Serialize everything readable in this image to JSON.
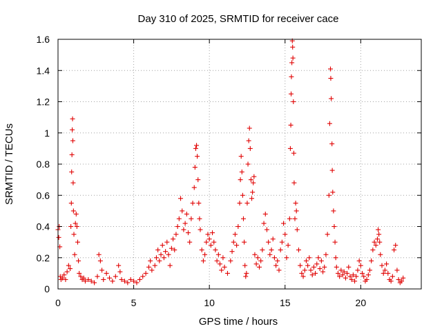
{
  "chart_data": {
    "type": "scatter",
    "title": "Day 310 of 2025, SRMTID for receiver cace",
    "xlabel": "GPS time / hours",
    "ylabel": "SRMTID / TECUs",
    "xlim": [
      0,
      24
    ],
    "ylim": [
      0,
      1.6
    ],
    "xticks": [
      0,
      5,
      10,
      15,
      20
    ],
    "xtick_labels": [
      "0",
      "5",
      "10",
      "15",
      "20"
    ],
    "yticks": [
      0,
      0.2,
      0.4,
      0.6,
      0.8,
      1,
      1.2,
      1.4,
      1.6
    ],
    "ytick_labels": [
      "0",
      "0.2",
      "0.4",
      "0.6",
      "0.8",
      "1",
      "1.2",
      "1.4",
      "1.6"
    ],
    "grid": true,
    "marker": "+",
    "series": [
      {
        "name": "SRMTID",
        "color": "#e00000",
        "points": [
          [
            0.0,
            0.38
          ],
          [
            0.05,
            0.33
          ],
          [
            0.08,
            0.4
          ],
          [
            0.12,
            0.27
          ],
          [
            0.15,
            0.08
          ],
          [
            0.2,
            0.06
          ],
          [
            0.3,
            0.07
          ],
          [
            0.4,
            0.09
          ],
          [
            0.5,
            0.06
          ],
          [
            0.6,
            0.11
          ],
          [
            0.7,
            0.15
          ],
          [
            0.8,
            0.13
          ],
          [
            0.85,
            0.4
          ],
          [
            0.88,
            0.55
          ],
          [
            0.9,
            0.75
          ],
          [
            0.92,
            0.86
          ],
          [
            0.94,
            1.02
          ],
          [
            0.96,
            1.09
          ],
          [
            0.98,
            0.95
          ],
          [
            1.0,
            0.68
          ],
          [
            1.02,
            0.5
          ],
          [
            1.05,
            0.35
          ],
          [
            1.1,
            0.22
          ],
          [
            1.15,
            0.42
          ],
          [
            1.2,
            0.48
          ],
          [
            1.25,
            0.4
          ],
          [
            1.3,
            0.3
          ],
          [
            1.35,
            0.18
          ],
          [
            1.4,
            0.1
          ],
          [
            1.5,
            0.08
          ],
          [
            1.6,
            0.06
          ],
          [
            1.7,
            0.07
          ],
          [
            1.8,
            0.05
          ],
          [
            2.0,
            0.06
          ],
          [
            2.2,
            0.05
          ],
          [
            2.4,
            0.04
          ],
          [
            2.6,
            0.08
          ],
          [
            2.7,
            0.22
          ],
          [
            2.8,
            0.18
          ],
          [
            2.9,
            0.12
          ],
          [
            3.0,
            0.06
          ],
          [
            3.2,
            0.1
          ],
          [
            3.4,
            0.07
          ],
          [
            3.6,
            0.05
          ],
          [
            3.8,
            0.08
          ],
          [
            4.0,
            0.15
          ],
          [
            4.1,
            0.11
          ],
          [
            4.2,
            0.06
          ],
          [
            4.4,
            0.05
          ],
          [
            4.6,
            0.04
          ],
          [
            4.8,
            0.06
          ],
          [
            5.0,
            0.05
          ],
          [
            5.2,
            0.04
          ],
          [
            5.4,
            0.06
          ],
          [
            5.6,
            0.08
          ],
          [
            5.8,
            0.1
          ],
          [
            6.0,
            0.14
          ],
          [
            6.1,
            0.18
          ],
          [
            6.2,
            0.12
          ],
          [
            6.4,
            0.15
          ],
          [
            6.5,
            0.2
          ],
          [
            6.6,
            0.25
          ],
          [
            6.7,
            0.18
          ],
          [
            6.8,
            0.22
          ],
          [
            6.9,
            0.28
          ],
          [
            7.0,
            0.2
          ],
          [
            7.1,
            0.24
          ],
          [
            7.2,
            0.3
          ],
          [
            7.3,
            0.22
          ],
          [
            7.4,
            0.15
          ],
          [
            7.5,
            0.26
          ],
          [
            7.6,
            0.32
          ],
          [
            7.7,
            0.25
          ],
          [
            7.8,
            0.35
          ],
          [
            7.9,
            0.4
          ],
          [
            8.0,
            0.45
          ],
          [
            8.1,
            0.58
          ],
          [
            8.2,
            0.5
          ],
          [
            8.3,
            0.38
          ],
          [
            8.4,
            0.42
          ],
          [
            8.5,
            0.48
          ],
          [
            8.6,
            0.36
          ],
          [
            8.7,
            0.3
          ],
          [
            8.8,
            0.45
          ],
          [
            8.9,
            0.55
          ],
          [
            9.0,
            0.65
          ],
          [
            9.05,
            0.78
          ],
          [
            9.1,
            0.9
          ],
          [
            9.15,
            0.92
          ],
          [
            9.2,
            0.85
          ],
          [
            9.25,
            0.7
          ],
          [
            9.3,
            0.55
          ],
          [
            9.35,
            0.45
          ],
          [
            9.4,
            0.38
          ],
          [
            9.5,
            0.25
          ],
          [
            9.6,
            0.18
          ],
          [
            9.7,
            0.22
          ],
          [
            9.8,
            0.3
          ],
          [
            9.9,
            0.35
          ],
          [
            10.0,
            0.32
          ],
          [
            10.1,
            0.28
          ],
          [
            10.2,
            0.36
          ],
          [
            10.3,
            0.3
          ],
          [
            10.4,
            0.25
          ],
          [
            10.5,
            0.18
          ],
          [
            10.6,
            0.22
          ],
          [
            10.7,
            0.16
          ],
          [
            10.8,
            0.12
          ],
          [
            10.9,
            0.2
          ],
          [
            11.0,
            0.14
          ],
          [
            11.2,
            0.1
          ],
          [
            11.4,
            0.18
          ],
          [
            11.5,
            0.24
          ],
          [
            11.6,
            0.3
          ],
          [
            11.7,
            0.35
          ],
          [
            11.8,
            0.28
          ],
          [
            11.9,
            0.4
          ],
          [
            12.0,
            0.55
          ],
          [
            12.05,
            0.7
          ],
          [
            12.1,
            0.85
          ],
          [
            12.15,
            0.75
          ],
          [
            12.2,
            0.6
          ],
          [
            12.25,
            0.45
          ],
          [
            12.3,
            0.3
          ],
          [
            12.35,
            0.15
          ],
          [
            12.4,
            0.08
          ],
          [
            12.45,
            0.1
          ],
          [
            12.5,
            0.55
          ],
          [
            12.55,
            0.8
          ],
          [
            12.6,
            0.95
          ],
          [
            12.65,
            1.03
          ],
          [
            12.7,
            0.9
          ],
          [
            12.75,
            0.7
          ],
          [
            12.8,
            0.58
          ],
          [
            12.85,
            0.62
          ],
          [
            12.9,
            0.68
          ],
          [
            12.95,
            0.72
          ],
          [
            13.0,
            0.22
          ],
          [
            13.1,
            0.16
          ],
          [
            13.2,
            0.2
          ],
          [
            13.3,
            0.14
          ],
          [
            13.4,
            0.18
          ],
          [
            13.5,
            0.25
          ],
          [
            13.6,
            0.42
          ],
          [
            13.7,
            0.48
          ],
          [
            13.8,
            0.38
          ],
          [
            13.9,
            0.3
          ],
          [
            14.0,
            0.22
          ],
          [
            14.1,
            0.25
          ],
          [
            14.2,
            0.32
          ],
          [
            14.3,
            0.2
          ],
          [
            14.4,
            0.15
          ],
          [
            14.5,
            0.18
          ],
          [
            14.6,
            0.12
          ],
          [
            14.7,
            0.25
          ],
          [
            14.8,
            0.3
          ],
          [
            14.9,
            0.42
          ],
          [
            15.0,
            0.35
          ],
          [
            15.1,
            0.2
          ],
          [
            15.2,
            0.28
          ],
          [
            15.3,
            0.45
          ],
          [
            15.35,
            0.9
          ],
          [
            15.38,
            1.05
          ],
          [
            15.4,
            1.25
          ],
          [
            15.42,
            1.36
          ],
          [
            15.45,
            1.45
          ],
          [
            15.48,
            1.59
          ],
          [
            15.5,
            1.55
          ],
          [
            15.52,
            1.48
          ],
          [
            15.55,
            1.2
          ],
          [
            15.58,
            0.87
          ],
          [
            15.6,
            0.68
          ],
          [
            15.65,
            0.45
          ],
          [
            15.7,
            0.55
          ],
          [
            15.75,
            0.5
          ],
          [
            15.8,
            0.38
          ],
          [
            15.9,
            0.25
          ],
          [
            16.0,
            0.15
          ],
          [
            16.1,
            0.1
          ],
          [
            16.2,
            0.08
          ],
          [
            16.3,
            0.12
          ],
          [
            16.4,
            0.18
          ],
          [
            16.5,
            0.15
          ],
          [
            16.6,
            0.2
          ],
          [
            16.7,
            0.12
          ],
          [
            16.8,
            0.09
          ],
          [
            16.9,
            0.14
          ],
          [
            17.0,
            0.1
          ],
          [
            17.1,
            0.16
          ],
          [
            17.2,
            0.2
          ],
          [
            17.3,
            0.13
          ],
          [
            17.4,
            0.18
          ],
          [
            17.5,
            0.11
          ],
          [
            17.6,
            0.14
          ],
          [
            17.7,
            0.22
          ],
          [
            17.8,
            0.35
          ],
          [
            17.9,
            0.6
          ],
          [
            17.95,
            1.06
          ],
          [
            18.0,
            1.41
          ],
          [
            18.02,
            1.35
          ],
          [
            18.05,
            1.22
          ],
          [
            18.1,
            0.93
          ],
          [
            18.12,
            0.76
          ],
          [
            18.15,
            0.62
          ],
          [
            18.2,
            0.5
          ],
          [
            18.25,
            0.4
          ],
          [
            18.3,
            0.3
          ],
          [
            18.35,
            0.2
          ],
          [
            18.4,
            0.14
          ],
          [
            18.5,
            0.1
          ],
          [
            18.6,
            0.08
          ],
          [
            18.7,
            0.12
          ],
          [
            18.8,
            0.09
          ],
          [
            18.9,
            0.11
          ],
          [
            19.0,
            0.07
          ],
          [
            19.1,
            0.1
          ],
          [
            19.2,
            0.14
          ],
          [
            19.3,
            0.08
          ],
          [
            19.4,
            0.06
          ],
          [
            19.5,
            0.09
          ],
          [
            19.6,
            0.05
          ],
          [
            19.7,
            0.08
          ],
          [
            19.8,
            0.12
          ],
          [
            19.9,
            0.18
          ],
          [
            20.0,
            0.15
          ],
          [
            20.1,
            0.1
          ],
          [
            20.2,
            0.08
          ],
          [
            20.3,
            0.05
          ],
          [
            20.4,
            0.06
          ],
          [
            20.5,
            0.09
          ],
          [
            20.6,
            0.12
          ],
          [
            20.7,
            0.18
          ],
          [
            20.8,
            0.25
          ],
          [
            20.9,
            0.3
          ],
          [
            21.0,
            0.28
          ],
          [
            21.1,
            0.32
          ],
          [
            21.15,
            0.38
          ],
          [
            21.2,
            0.35
          ],
          [
            21.25,
            0.3
          ],
          [
            21.3,
            0.22
          ],
          [
            21.4,
            0.15
          ],
          [
            21.5,
            0.1
          ],
          [
            21.6,
            0.12
          ],
          [
            21.7,
            0.16
          ],
          [
            21.8,
            0.1
          ],
          [
            21.9,
            0.06
          ],
          [
            22.0,
            0.05
          ],
          [
            22.1,
            0.08
          ],
          [
            22.2,
            0.25
          ],
          [
            22.3,
            0.28
          ],
          [
            22.4,
            0.12
          ],
          [
            22.5,
            0.06
          ],
          [
            22.6,
            0.04
          ],
          [
            22.7,
            0.05
          ],
          [
            22.8,
            0.07
          ]
        ]
      }
    ]
  }
}
